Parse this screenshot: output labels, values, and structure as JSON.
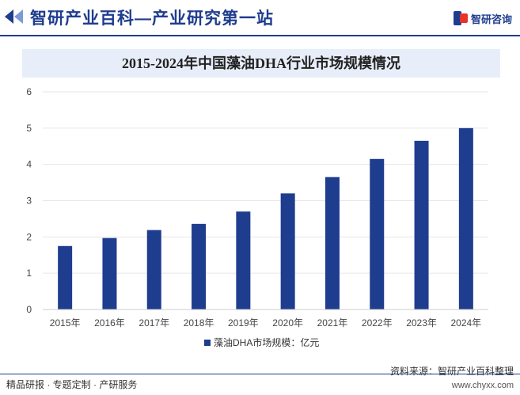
{
  "header": {
    "site_title": "智研产业百科—产业研究第一站",
    "brand": "智研咨询"
  },
  "chart_data": {
    "type": "bar",
    "title": "2015-2024年中国藻油DHA行业市场规模情况",
    "categories": [
      "2015年",
      "2016年",
      "2017年",
      "2018年",
      "2019年",
      "2020年",
      "2021年",
      "2022年",
      "2023年",
      "2024年"
    ],
    "series": [
      {
        "name": "藻油DHA市场规模：亿元",
        "values": [
          1.75,
          1.97,
          2.19,
          2.36,
          2.7,
          3.2,
          3.65,
          4.15,
          4.65,
          5.0
        ],
        "color": "#1f3d8f"
      }
    ],
    "yticks": [
      0,
      1,
      2,
      3,
      4,
      5,
      6
    ],
    "ylim": [
      0,
      6
    ],
    "xlabel": "",
    "ylabel": "",
    "legend_position": "bottom-center"
  },
  "footer": {
    "left": "精品研报 · 专题定制 · 产研服务",
    "source": "资料来源：智研产业百科整理",
    "url": "www.chyxx.com"
  }
}
